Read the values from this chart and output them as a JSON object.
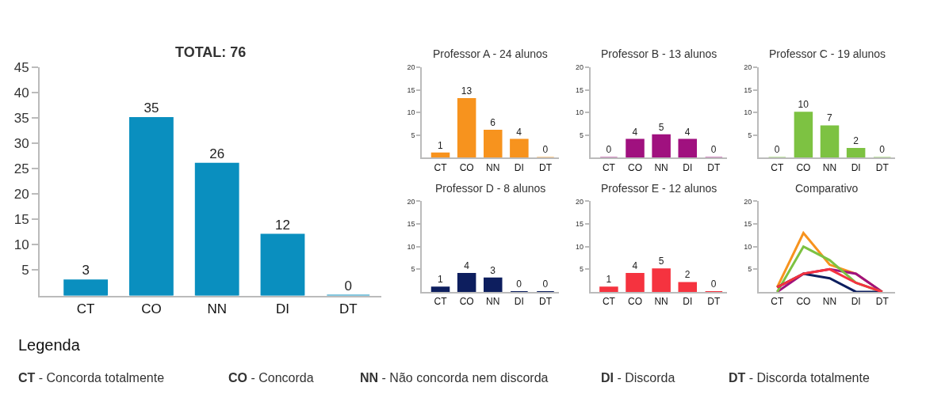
{
  "chart_data": [
    {
      "type": "bar",
      "title": "TOTAL: 76",
      "categories": [
        "CT",
        "CO",
        "NN",
        "DI",
        "DT"
      ],
      "values": [
        3,
        35,
        26,
        12,
        0
      ],
      "color": "#0a8fbf",
      "ylim": [
        0,
        45
      ],
      "yticks": [
        5,
        10,
        15,
        20,
        25,
        30,
        35,
        40,
        45
      ],
      "data_labels": true,
      "grid": false,
      "annotations": [
        "Legenda",
        "CT - Concorda totalmente",
        "CO - Concorda",
        "NN - Não concorda nem discorda",
        "DI - Discorda",
        "DT - Discorda totalmente"
      ]
    },
    {
      "type": "bar",
      "title": "Professor A - 24 alunos",
      "categories": [
        "CT",
        "CO",
        "NN",
        "DI",
        "DT"
      ],
      "values": [
        1,
        13,
        6,
        4,
        0
      ],
      "color": "#f7931e",
      "ylim": [
        0,
        20
      ],
      "yticks": [
        5,
        10,
        15,
        20
      ],
      "data_labels": true,
      "grid": false
    },
    {
      "type": "bar",
      "title": "Professor B - 13 alunos",
      "categories": [
        "CT",
        "CO",
        "NN",
        "DI",
        "DT"
      ],
      "values": [
        0,
        4,
        5,
        4,
        0
      ],
      "color": "#a0117f",
      "ylim": [
        0,
        20
      ],
      "yticks": [
        5,
        10,
        15,
        20
      ],
      "data_labels": true,
      "grid": false
    },
    {
      "type": "bar",
      "title": "Professor C - 19 alunos",
      "categories": [
        "CT",
        "CO",
        "NN",
        "DI",
        "DT"
      ],
      "values": [
        0,
        10,
        7,
        2,
        0
      ],
      "color": "#7dc242",
      "ylim": [
        0,
        20
      ],
      "yticks": [
        5,
        10,
        15,
        20
      ],
      "data_labels": true,
      "grid": false
    },
    {
      "type": "bar",
      "title": "Professor D - 8 alunos",
      "categories": [
        "CT",
        "CO",
        "NN",
        "DI",
        "DT"
      ],
      "values": [
        1,
        4,
        3,
        0,
        0
      ],
      "color": "#0d1e5e",
      "ylim": [
        0,
        20
      ],
      "yticks": [
        5,
        10,
        15,
        20
      ],
      "data_labels": true,
      "grid": false
    },
    {
      "type": "bar",
      "title": "Professor E - 12 alunos",
      "categories": [
        "CT",
        "CO",
        "NN",
        "DI",
        "DT"
      ],
      "values": [
        1,
        4,
        5,
        2,
        0
      ],
      "color": "#f5333f",
      "ylim": [
        0,
        20
      ],
      "yticks": [
        5,
        10,
        15,
        20
      ],
      "data_labels": true,
      "grid": false
    },
    {
      "type": "line",
      "title": "Comparativo",
      "categories": [
        "CT",
        "CO",
        "NN",
        "DI",
        "DT"
      ],
      "ylim": [
        0,
        20
      ],
      "yticks": [
        5,
        10,
        15,
        20
      ],
      "grid": false,
      "marker": "none",
      "line_style": "solid",
      "series": [
        {
          "color": "#f7931e",
          "values": [
            1,
            13,
            6,
            4,
            0
          ]
        },
        {
          "color": "#a0117f",
          "values": [
            0,
            4,
            5,
            4,
            0
          ]
        },
        {
          "color": "#7dc242",
          "values": [
            0,
            10,
            7,
            2,
            0
          ]
        },
        {
          "color": "#0d1e5e",
          "values": [
            1,
            4,
            3,
            0,
            0
          ]
        },
        {
          "color": "#f5333f",
          "values": [
            1,
            4,
            5,
            2,
            0
          ]
        }
      ]
    }
  ]
}
